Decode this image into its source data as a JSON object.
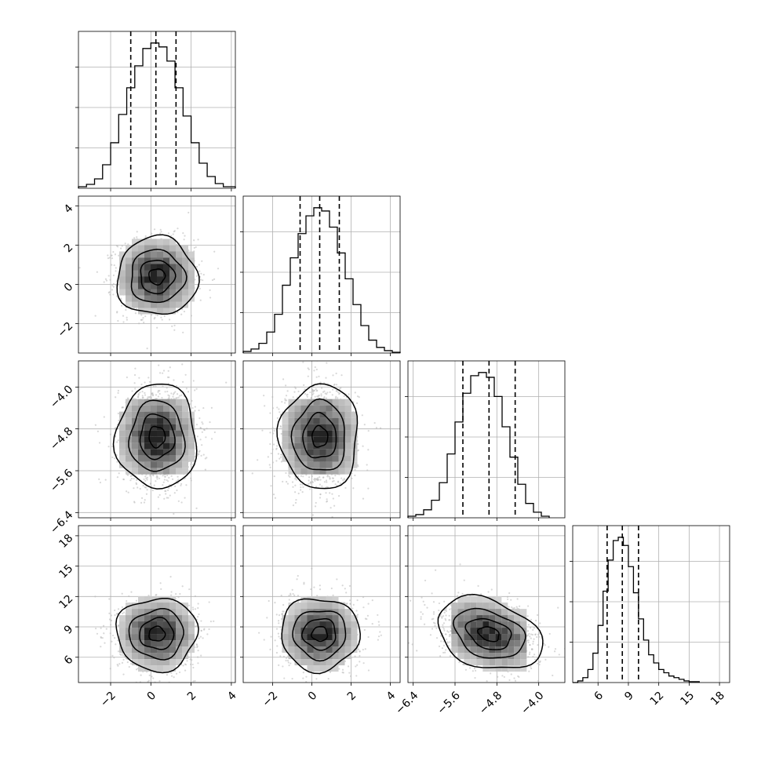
{
  "chart_data": {
    "type": "corner",
    "title": "",
    "grid": true,
    "params": [
      {
        "range": [
          -3.6,
          4.2
        ],
        "ticks": [
          -2,
          0,
          2,
          4
        ],
        "tick_labels": [
          "−2",
          "0",
          "2",
          "4"
        ],
        "quantiles": [
          -1.0,
          0.25,
          1.25
        ],
        "hist": {
          "edges": [
            -3.6,
            -3.2,
            -2.8,
            -2.4,
            -2.0,
            -1.6,
            -1.2,
            -0.8,
            -0.4,
            0.0,
            0.4,
            0.8,
            1.2,
            1.6,
            2.0,
            2.4,
            2.8,
            3.2,
            3.6,
            4.2
          ],
          "counts": [
            2,
            5,
            12,
            30,
            58,
            94,
            128,
            156,
            178,
            185,
            180,
            162,
            128,
            92,
            58,
            32,
            15,
            6,
            2
          ]
        },
        "center": 0.3,
        "sigma": 1.0
      },
      {
        "range": [
          -3.5,
          4.5
        ],
        "ticks": [
          -2,
          0,
          2,
          4
        ],
        "tick_labels": [
          "−2",
          "0",
          "2",
          "4"
        ],
        "quantiles": [
          -0.6,
          0.4,
          1.4
        ],
        "hist": {
          "edges": [
            -3.5,
            -3.1,
            -2.7,
            -2.3,
            -1.9,
            -1.5,
            -1.1,
            -0.7,
            -0.3,
            0.1,
            0.5,
            0.9,
            1.3,
            1.7,
            2.1,
            2.5,
            2.9,
            3.3,
            3.7,
            4.1,
            4.5
          ],
          "counts": [
            2,
            5,
            12,
            26,
            48,
            84,
            118,
            148,
            170,
            180,
            176,
            156,
            124,
            92,
            60,
            34,
            16,
            7,
            3,
            1
          ]
        },
        "center": 0.4,
        "sigma": 1.0
      },
      {
        "range": [
          -6.5,
          -3.5
        ],
        "ticks": [
          -6.4,
          -5.6,
          -4.8,
          -4.0
        ],
        "tick_labels": [
          "−6.4",
          "−5.6",
          "−4.8",
          "−4.0"
        ],
        "quantiles": [
          -5.45,
          -4.95,
          -4.45
        ],
        "hist": {
          "edges": [
            -6.5,
            -6.35,
            -6.2,
            -6.05,
            -5.9,
            -5.75,
            -5.6,
            -5.45,
            -5.3,
            -5.15,
            -5.0,
            -4.85,
            -4.7,
            -4.55,
            -4.4,
            -4.25,
            -4.1,
            -3.95,
            -3.8
          ],
          "counts": [
            2,
            4,
            10,
            22,
            44,
            80,
            120,
            156,
            178,
            182,
            176,
            152,
            114,
            76,
            42,
            18,
            7,
            2
          ]
        },
        "center": -4.95,
        "sigma": 0.5
      },
      {
        "range": [
          3.5,
          19.0
        ],
        "ticks": [
          6,
          9,
          12,
          15,
          18
        ],
        "tick_labels": [
          "6",
          "9",
          "12",
          "15",
          "18"
        ],
        "quantiles": [
          6.9,
          8.4,
          10.0
        ],
        "hist": {
          "edges": [
            3.5,
            4.0,
            4.5,
            5.0,
            5.5,
            6.0,
            6.5,
            7.0,
            7.5,
            8.0,
            8.5,
            9.0,
            9.5,
            10.0,
            10.5,
            11.0,
            11.5,
            12.0,
            12.5,
            13.0,
            13.5,
            14.0,
            14.5,
            15.0,
            15.5,
            16.0
          ],
          "counts": [
            0,
            2,
            6,
            16,
            36,
            70,
            112,
            150,
            174,
            178,
            168,
            142,
            110,
            78,
            52,
            34,
            24,
            16,
            12,
            8,
            6,
            4,
            2,
            1,
            1
          ]
        },
        "center": 8.3,
        "sigma": 1.8
      }
    ],
    "pairs": [
      {
        "row": 1,
        "col": 0,
        "rho": 0.0,
        "contour_levels": [
          0.4,
          0.85,
          1.35,
          2.0
        ]
      },
      {
        "row": 2,
        "col": 0,
        "rho": 0.0,
        "contour_levels": [
          0.4,
          0.85,
          1.35,
          2.0
        ]
      },
      {
        "row": 2,
        "col": 1,
        "rho": 0.0,
        "contour_levels": [
          0.4,
          0.85,
          1.35,
          2.0
        ]
      },
      {
        "row": 3,
        "col": 0,
        "rho": 0.0,
        "contour_levels": [
          0.4,
          0.85,
          1.35,
          2.0
        ]
      },
      {
        "row": 3,
        "col": 1,
        "rho": 0.0,
        "contour_levels": [
          0.4,
          0.85,
          1.35,
          2.0
        ]
      },
      {
        "row": 3,
        "col": 2,
        "rho": -0.3,
        "contour_levels": [
          0.4,
          0.85,
          1.35,
          2.0
        ]
      }
    ],
    "colors": {
      "line": "#000000",
      "grid": "#b0b0b0",
      "points": "#b8b8b8",
      "density_dark": "#000000"
    }
  }
}
